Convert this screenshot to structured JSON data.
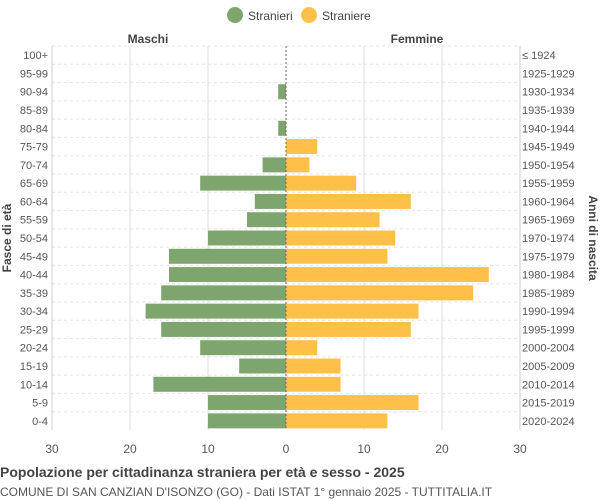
{
  "chart_data": {
    "type": "bar",
    "title": "Popolazione per cittadinanza straniera per età e sesso - 2025",
    "subtitle": "COMUNE DI SAN CANZIAN D'ISONZO (GO) - Dati ISTAT 1° gennaio 2025 - TUTTITALIA.IT",
    "left_label": "Maschi",
    "right_label": "Femmine",
    "ylabel_left": "Fasce di età",
    "ylabel_right": "Anni di nascita",
    "xlim": [
      -30,
      30
    ],
    "xticks": [
      "30",
      "20",
      "10",
      "0",
      "10",
      "20",
      "30"
    ],
    "grid": true,
    "legend_position": "top",
    "categories": [
      "100+",
      "95-99",
      "90-94",
      "85-89",
      "80-84",
      "75-79",
      "70-74",
      "65-69",
      "60-64",
      "55-59",
      "50-54",
      "45-49",
      "40-44",
      "35-39",
      "30-34",
      "25-29",
      "20-24",
      "15-19",
      "10-14",
      "5-9",
      "0-4"
    ],
    "birth_years": [
      "≤ 1924",
      "1925-1929",
      "1930-1934",
      "1935-1939",
      "1940-1944",
      "1945-1949",
      "1950-1954",
      "1955-1959",
      "1960-1964",
      "1965-1969",
      "1970-1974",
      "1975-1979",
      "1980-1984",
      "1985-1989",
      "1990-1994",
      "1995-1999",
      "2000-2004",
      "2005-2009",
      "2010-2014",
      "2015-2019",
      "2020-2024"
    ],
    "series": [
      {
        "name": "Stranieri",
        "color": "#7ea56e",
        "values": [
          0,
          0,
          1,
          0,
          1,
          0,
          3,
          11,
          4,
          5,
          10,
          15,
          15,
          16,
          18,
          16,
          11,
          6,
          17,
          10,
          10
        ]
      },
      {
        "name": "Straniere",
        "color": "#ffc04a",
        "values": [
          0,
          0,
          0,
          0,
          0,
          4,
          3,
          9,
          16,
          12,
          14,
          13,
          26,
          24,
          17,
          16,
          4,
          7,
          7,
          17,
          13
        ]
      }
    ]
  }
}
